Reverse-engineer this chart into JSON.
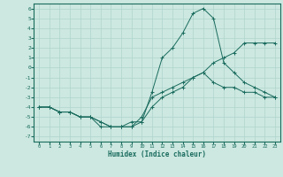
{
  "xlabel": "Humidex (Indice chaleur)",
  "xlim": [
    -0.5,
    23.5
  ],
  "ylim": [
    -7.5,
    6.5
  ],
  "xticks": [
    0,
    1,
    2,
    3,
    4,
    5,
    6,
    7,
    8,
    9,
    10,
    11,
    12,
    13,
    14,
    15,
    16,
    17,
    18,
    19,
    20,
    21,
    22,
    23
  ],
  "yticks": [
    -7,
    -6,
    -5,
    -4,
    -3,
    -2,
    -1,
    0,
    1,
    2,
    3,
    4,
    5,
    6
  ],
  "bg_color": "#cce8e0",
  "line_color": "#1a6b5e",
  "grid_color": "#b0d4cc",
  "line1_x": [
    0,
    1,
    2,
    3,
    4,
    5,
    6,
    7,
    8,
    9,
    10,
    11,
    12,
    13,
    14,
    15,
    16,
    17,
    18,
    19,
    20,
    21,
    22,
    23
  ],
  "line1_y": [
    -4,
    -4,
    -4.5,
    -4.5,
    -5,
    -5,
    -6,
    -6,
    -6,
    -6,
    -5.5,
    -4,
    -3,
    -2.5,
    -2,
    -1,
    -0.5,
    -1.5,
    -2,
    -2,
    -2.5,
    -2.5,
    -3,
    -3
  ],
  "line2_x": [
    0,
    1,
    2,
    3,
    4,
    5,
    6,
    7,
    8,
    9,
    10,
    11,
    12,
    13,
    14,
    15,
    16,
    17,
    18,
    19,
    20,
    21,
    22,
    23
  ],
  "line2_y": [
    -4,
    -4,
    -4.5,
    -4.5,
    -5,
    -5,
    -5.5,
    -6,
    -6,
    -5.5,
    -5.5,
    -2.5,
    1,
    2,
    3.5,
    5.5,
    6,
    5,
    0.5,
    -0.5,
    -1.5,
    -2,
    -2.5,
    -3
  ],
  "line3_x": [
    0,
    1,
    2,
    3,
    4,
    5,
    6,
    7,
    8,
    9,
    10,
    11,
    12,
    13,
    14,
    15,
    16,
    17,
    18,
    19,
    20,
    21,
    22,
    23
  ],
  "line3_y": [
    -4,
    -4,
    -4.5,
    -4.5,
    -5,
    -5,
    -5.5,
    -6,
    -6,
    -6,
    -5,
    -3,
    -2.5,
    -2,
    -1.5,
    -1,
    -0.5,
    0.5,
    1,
    1.5,
    2.5,
    2.5,
    2.5,
    2.5
  ]
}
